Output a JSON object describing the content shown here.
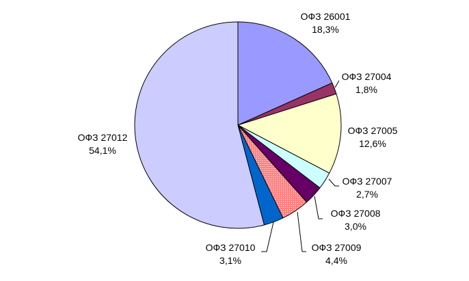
{
  "chart_data": {
    "type": "pie",
    "title": "",
    "slices": [
      {
        "label": "ОФЗ 26001",
        "percent_label": "18,3%",
        "value": 18.3,
        "color": "#9999ff"
      },
      {
        "label": "ОФЗ 27004",
        "percent_label": "1,8%",
        "value": 1.8,
        "color": "#993366"
      },
      {
        "label": "ОФЗ 27005",
        "percent_label": "12,6%",
        "value": 12.6,
        "color": "#ffffcc"
      },
      {
        "label": "ОФЗ 27007",
        "percent_label": "2,7%",
        "value": 2.7,
        "color": "#ccffff"
      },
      {
        "label": "ОФЗ 27008",
        "percent_label": "3,0%",
        "value": 3.0,
        "color": "#660066"
      },
      {
        "label": "ОФЗ 27009",
        "percent_label": "4,4%",
        "value": 4.4,
        "color": "#ff8080",
        "pattern": "dotted"
      },
      {
        "label": "ОФЗ 27010",
        "percent_label": "3,1%",
        "value": 3.1,
        "color": "#0066cc"
      },
      {
        "label": "ОФЗ 27012",
        "percent_label": "54,1%",
        "value": 54.1,
        "color": "#ccccff"
      }
    ],
    "start_angle": "12 o'clock",
    "direction": "clockwise",
    "legend": "none"
  }
}
